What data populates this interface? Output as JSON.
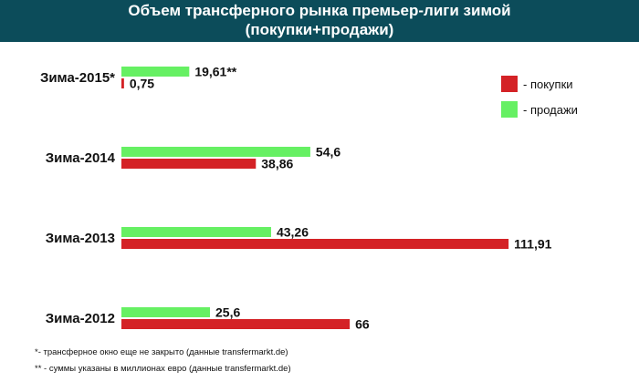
{
  "header": {
    "title_line1": "Объем трансферного рынка премьер-лиги зимой",
    "title_line2": "(покупки+продажи)"
  },
  "legend": {
    "buy": {
      "label": "- покупки",
      "color": "#d42226"
    },
    "sell": {
      "label": "- продажи",
      "color": "#66f063"
    }
  },
  "footnotes": {
    "note1": "*- трансферное окно еще не закрыто (данные transfermarkt.de)",
    "note2": "** - суммы указаны в миллионах евро (данные transfermarkt.de)"
  },
  "chart_data": {
    "type": "bar",
    "orientation": "horizontal",
    "categories": [
      "Зима-2015*",
      "Зима-2014",
      "Зима-2013",
      "Зима-2012"
    ],
    "series": [
      {
        "name": "- продажи",
        "color": "#66f063",
        "values": [
          19.61,
          54.6,
          43.26,
          25.6
        ],
        "labels": [
          "19,61**",
          "54,6",
          "43,26",
          "25,6"
        ]
      },
      {
        "name": "- покупки",
        "color": "#d42226",
        "values": [
          0.75,
          38.86,
          111.91,
          66
        ],
        "labels": [
          "0,75",
          "38,86",
          "111,91",
          "66"
        ]
      }
    ],
    "unit": "млн евро",
    "axis_visible": false,
    "grid": false,
    "legend_position": "right"
  }
}
